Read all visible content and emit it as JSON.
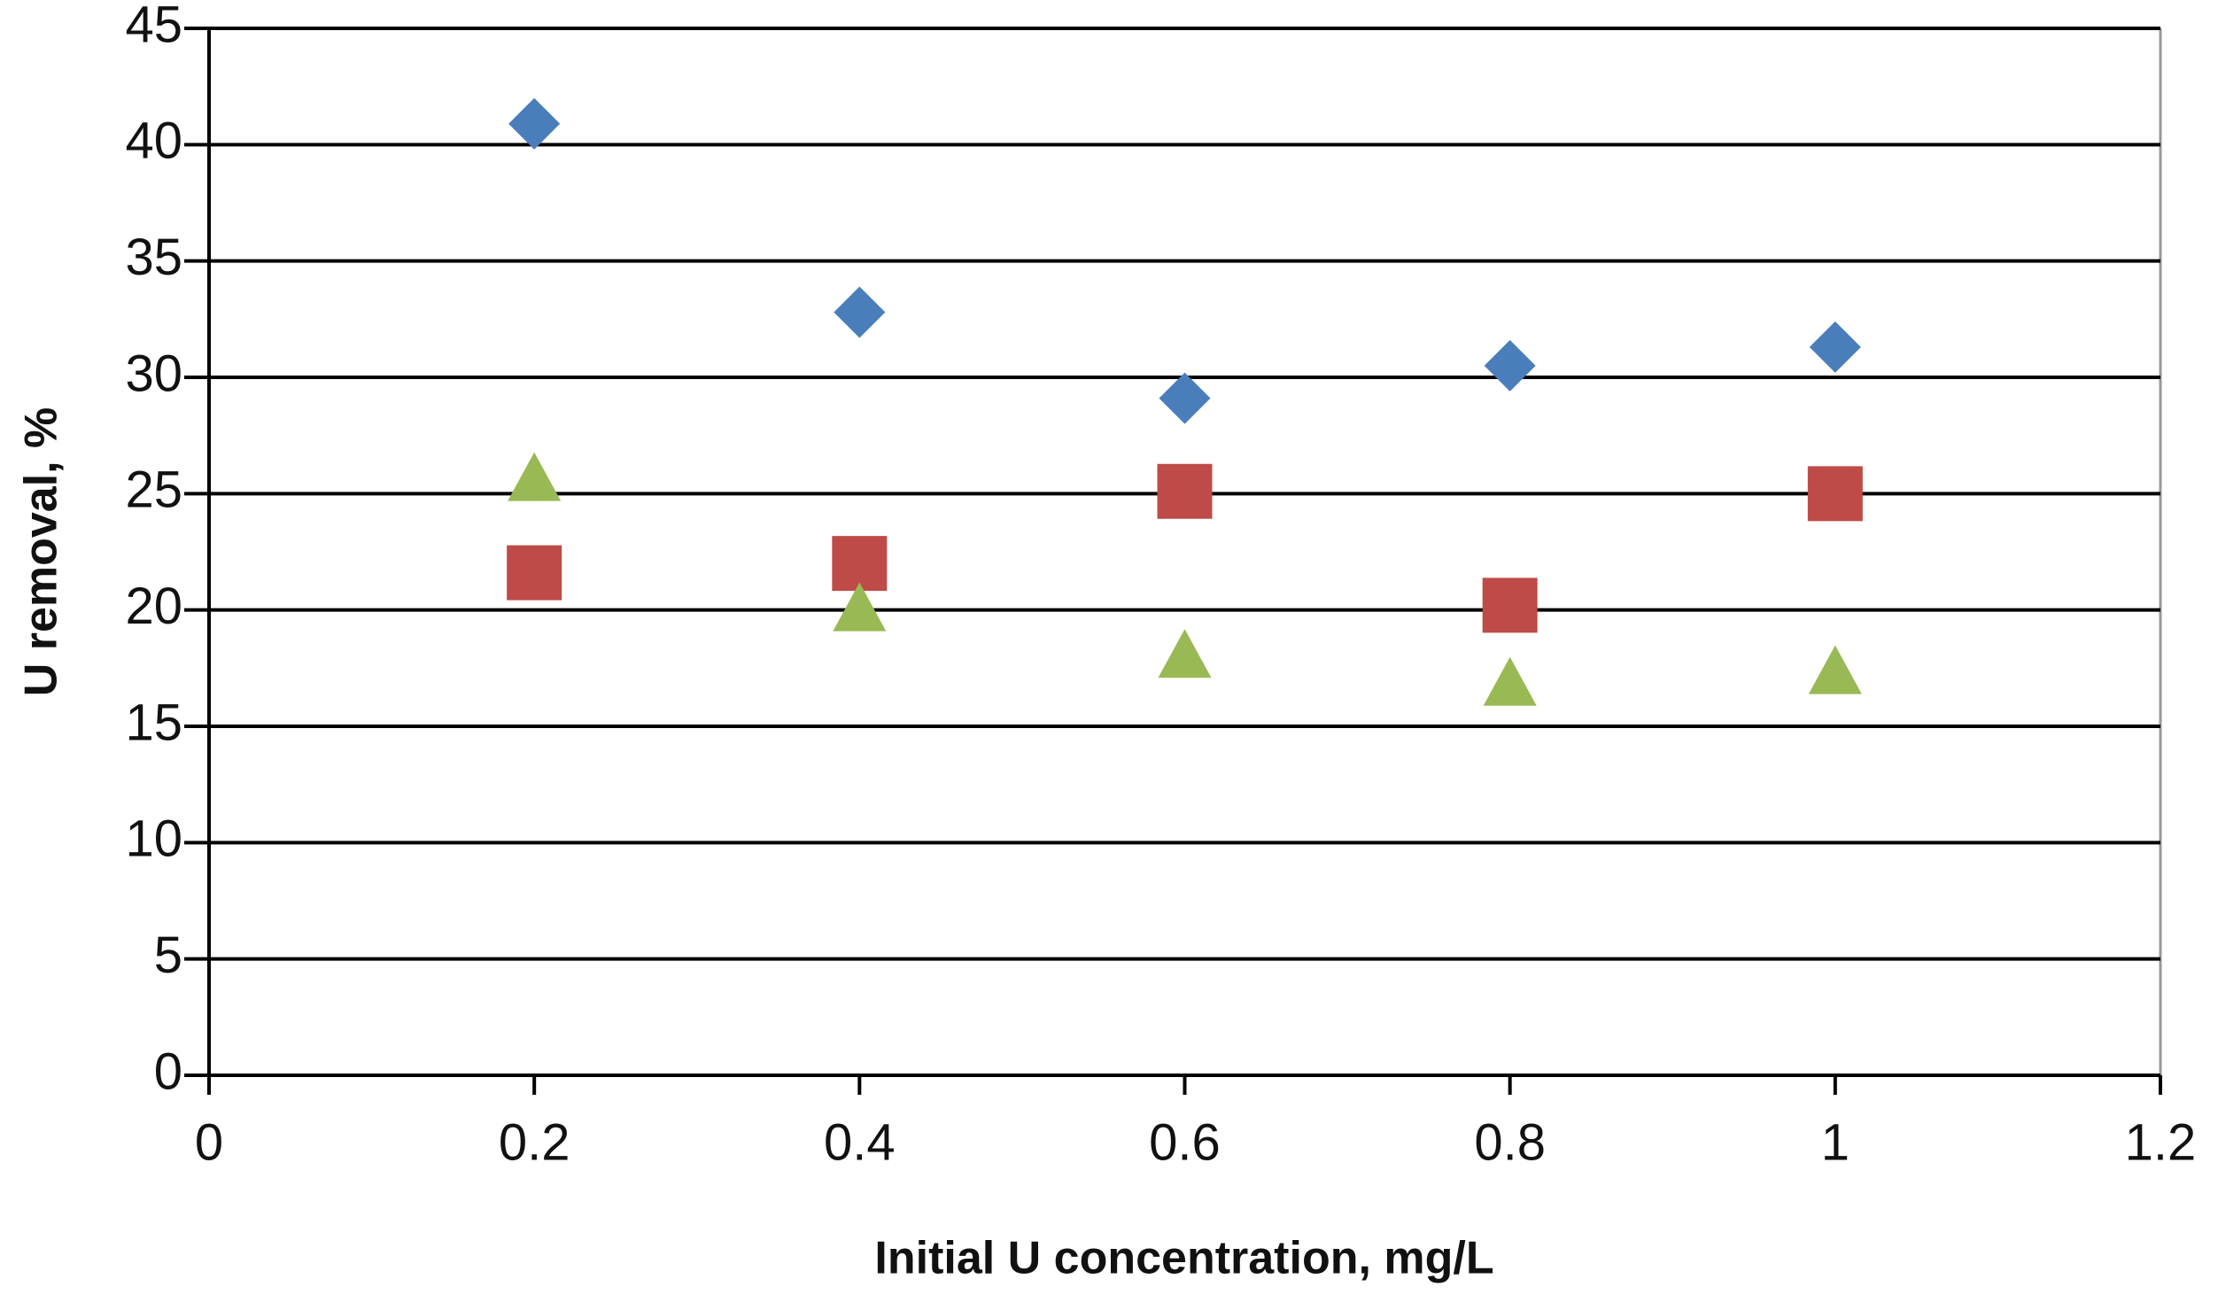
{
  "chart_data": {
    "type": "scatter",
    "x_label": "Initial U concentration, mg/L",
    "y_label": "U removal, %",
    "x": [
      0.2,
      0.4,
      0.6,
      0.8,
      1
    ],
    "series": [
      {
        "color": "#4a7ebb",
        "marker": "diamond",
        "values": [
          40.9,
          32.8,
          29.1,
          30.5,
          31.3
        ]
      },
      {
        "color": "#be4b48",
        "marker": "square",
        "values": [
          21.6,
          22.0,
          25.1,
          20.2,
          25.0
        ]
      },
      {
        "color": "#98b954",
        "marker": "triangle",
        "values": [
          25.6,
          20.0,
          18.0,
          16.8,
          17.3
        ]
      }
    ],
    "xlim": [
      0,
      1.2
    ],
    "xticks": [
      0,
      0.2,
      0.4,
      0.6,
      0.8,
      1,
      1.2
    ],
    "ylim": [
      0,
      45
    ],
    "yticks": [
      0,
      5,
      10,
      15,
      20,
      25,
      30,
      35,
      40,
      45
    ],
    "grid": true
  }
}
